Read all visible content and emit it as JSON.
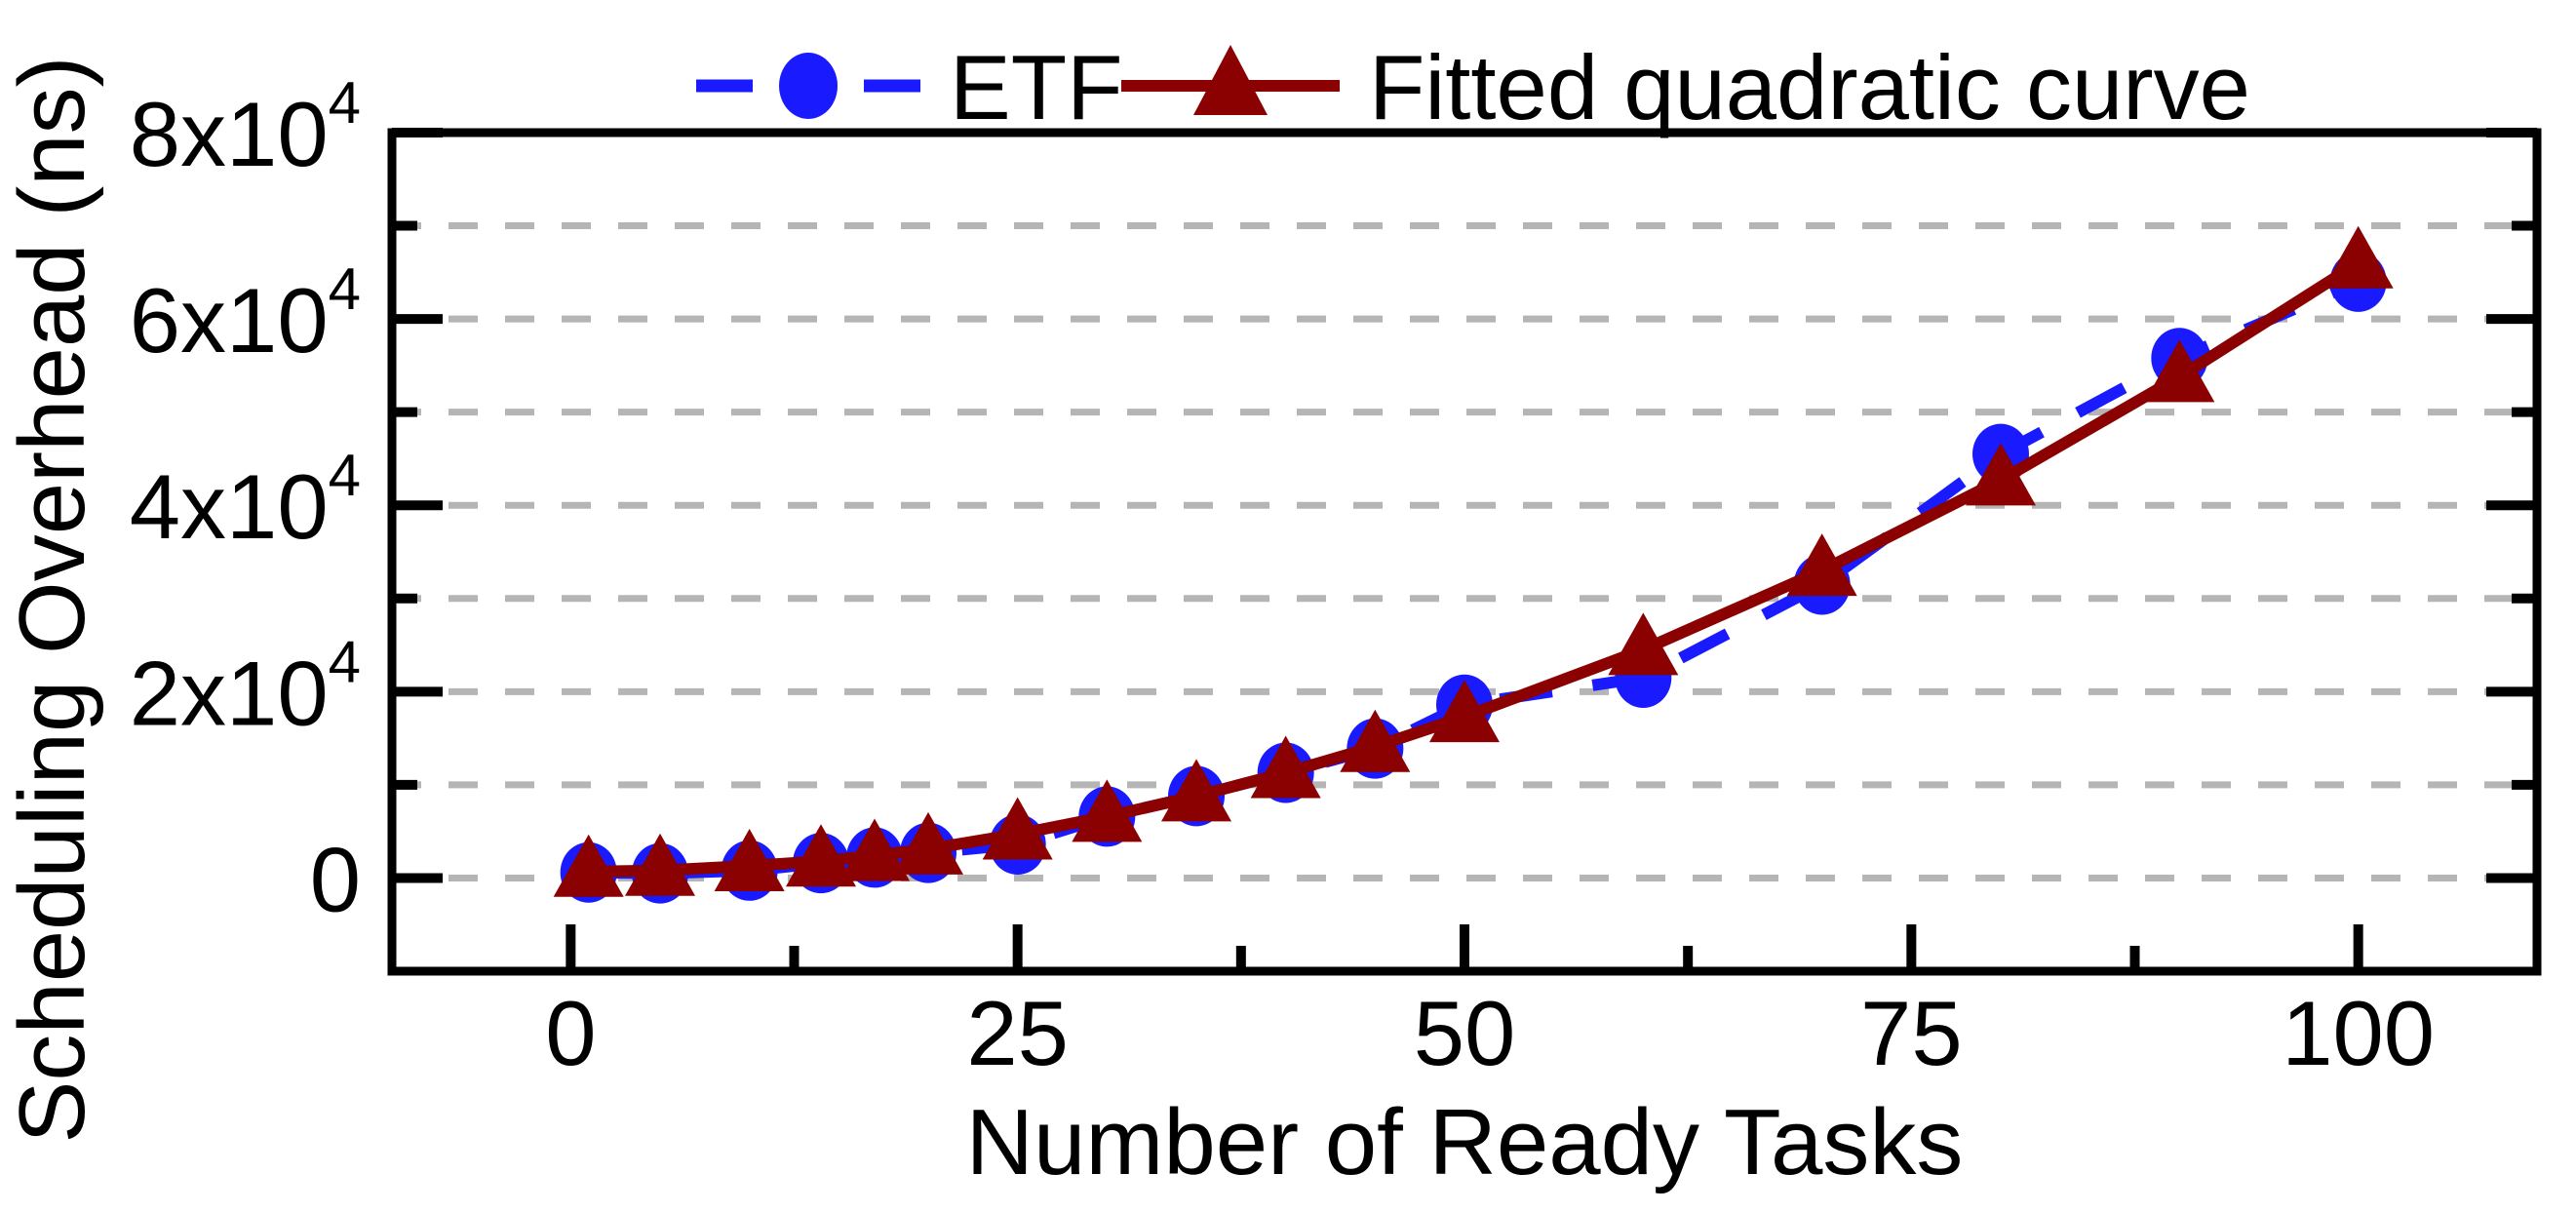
{
  "chart_data": {
    "type": "line",
    "title": "",
    "xlabel": "Number of Ready Tasks",
    "ylabel": "Scheduling Overhead (ns)",
    "xlim": [
      -10,
      110
    ],
    "ylim": [
      -10000,
      80000
    ],
    "x_ticks_major": [
      0,
      25,
      50,
      75,
      100
    ],
    "x_ticks_minor": [
      12.5,
      37.5,
      62.5,
      87.5
    ],
    "x_tick_labels": [
      "0",
      "25",
      "50",
      "75",
      "100"
    ],
    "y_ticks_major": [
      0,
      20000,
      40000,
      60000,
      80000
    ],
    "y_ticks_minor": [
      10000,
      30000,
      50000,
      70000
    ],
    "y_tick_labels": [
      {
        "v": 0,
        "base": "0",
        "sup": ""
      },
      {
        "v": 20000,
        "base": "2x10",
        "sup": "4"
      },
      {
        "v": 40000,
        "base": "4x10",
        "sup": "4"
      },
      {
        "v": 60000,
        "base": "6x10",
        "sup": "4"
      },
      {
        "v": 80000,
        "base": "8x10",
        "sup": "4"
      }
    ],
    "grid": {
      "horizontal": true,
      "vertical": false,
      "values": [
        0,
        10000,
        20000,
        30000,
        40000,
        50000,
        60000,
        70000
      ],
      "color": "#b5b5b5",
      "dash": "30 28"
    },
    "legend_position": "top-center",
    "x": [
      1,
      5,
      10,
      14,
      17,
      20,
      25,
      30,
      35,
      40,
      45,
      50,
      60,
      70,
      80,
      90,
      100
    ],
    "series": [
      {
        "name": "ETF",
        "color": "#1a1aff",
        "line": "dashed",
        "marker": "circle",
        "values": [
          600,
          500,
          800,
          1600,
          2200,
          2700,
          3600,
          6600,
          8800,
          11300,
          13900,
          18600,
          21500,
          31500,
          45500,
          55800,
          64000
        ]
      },
      {
        "name": "Fitted quadratic curve",
        "color": "#8B0000",
        "line": "solid",
        "marker": "triangle",
        "values": [
          700,
          800,
          1300,
          1800,
          2400,
          3100,
          4700,
          6600,
          8800,
          11300,
          14100,
          17300,
          24500,
          33000,
          42700,
          53800,
          66000
        ]
      }
    ],
    "frame_color": "#000000"
  }
}
